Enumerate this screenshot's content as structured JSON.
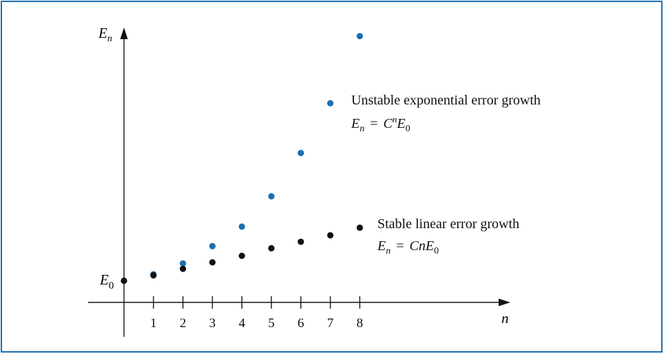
{
  "chart_data": {
    "type": "scatter",
    "x_axis_label": "n",
    "y_axis_label": {
      "main": "E",
      "sub": "n"
    },
    "y_axis_origin_label": {
      "main": "E",
      "sub": "0"
    },
    "categories": [
      "1",
      "2",
      "3",
      "4",
      "5",
      "6",
      "7",
      "8"
    ],
    "xlim": [
      -1.2,
      10.3
    ],
    "ylim": [
      -1.3,
      13.5
    ],
    "grid": false,
    "legend": "none",
    "series": [
      {
        "name": "Unstable exponential error growth",
        "formula": {
          "lhs": "E",
          "lhs_sub": "n",
          "eq": "=",
          "c": "C",
          "c_sup": "n",
          "e": "E",
          "e_sub": "0"
        },
        "color": "#1a6fb0",
        "x": [
          0,
          1,
          2,
          3,
          4,
          5,
          6,
          7,
          8
        ],
        "y": [
          1.0,
          1.3,
          1.8,
          2.6,
          3.5,
          4.9,
          6.9,
          9.2,
          12.3
        ]
      },
      {
        "name": "Stable linear error growth",
        "formula": {
          "lhs": "E",
          "lhs_sub": "n",
          "eq": "=",
          "c": "C",
          "c_sup": "",
          "n": "n",
          "e": "E",
          "e_sub": "0"
        },
        "color": "#111111",
        "x": [
          0,
          1,
          2,
          3,
          4,
          5,
          6,
          7,
          8
        ],
        "y": [
          1.0,
          1.25,
          1.55,
          1.85,
          2.15,
          2.5,
          2.8,
          3.1,
          3.45
        ]
      }
    ]
  }
}
